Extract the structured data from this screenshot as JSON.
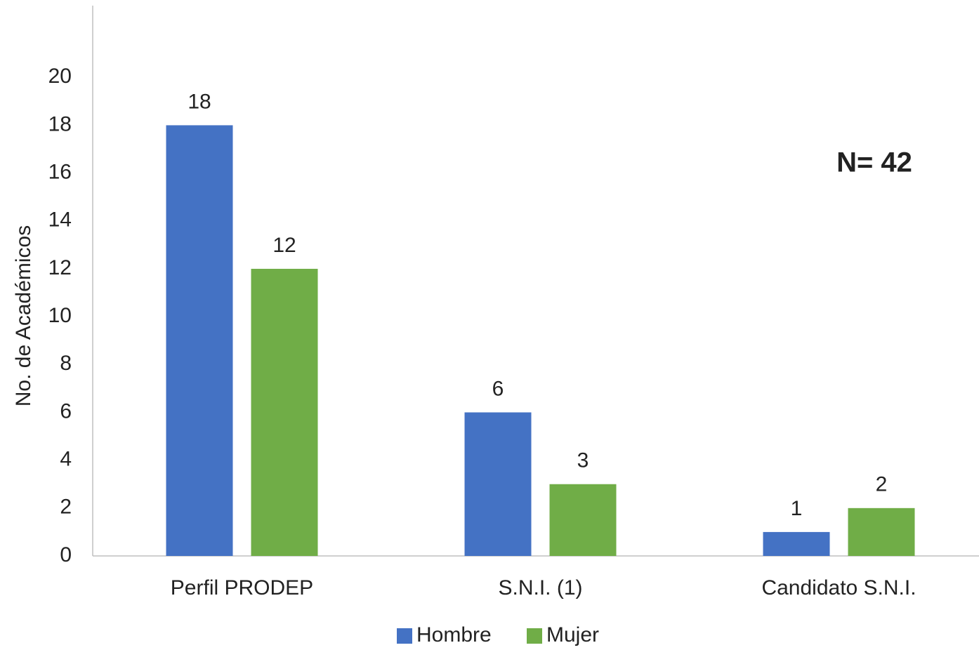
{
  "chart_data": {
    "type": "bar",
    "y_label": "No. de Académicos",
    "annotation": "N= 42",
    "categories": [
      "Perfil PRODEP",
      "S.N.I. (1)",
      "Candidato S.N.I."
    ],
    "series": [
      {
        "name": "Hombre",
        "color": "#4472c4",
        "values": [
          18,
          6,
          1
        ]
      },
      {
        "name": "Mujer",
        "color": "#70ad47",
        "values": [
          12,
          3,
          2
        ]
      }
    ],
    "ylim": [
      0,
      23
    ],
    "yticks": [
      0,
      2,
      4,
      6,
      8,
      10,
      12,
      14,
      16,
      18,
      20
    ],
    "grid": false,
    "legend": "bottom"
  }
}
